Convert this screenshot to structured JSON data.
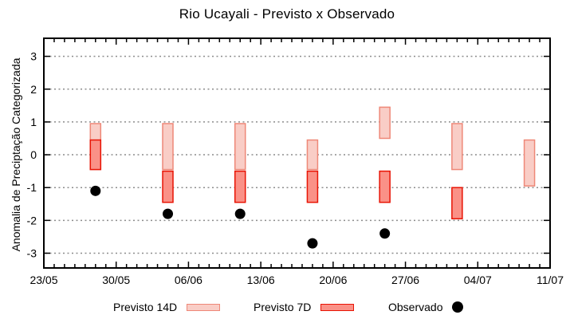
{
  "title": "Rio Ucayali - Previsto x Observado",
  "y_axis": {
    "label": "Anomalia de Preciptação Categorizada",
    "tick_values": [
      3,
      2,
      1,
      0,
      -1,
      -2,
      -3
    ]
  },
  "x_axis": {
    "tick_labels": [
      "23/05",
      "30/05",
      "06/06",
      "13/06",
      "20/06",
      "27/06",
      "04/07",
      "11/07"
    ],
    "span_days": 49,
    "major_tick_interval_days": 7,
    "minor_tick_interval_days": 1
  },
  "legend": {
    "items": [
      {
        "label": "Previsto 14D",
        "swatch": "range-14d"
      },
      {
        "label": "Previsto 7D",
        "swatch": "range-7d"
      },
      {
        "label": "Observado",
        "swatch": "dot"
      }
    ]
  },
  "colors": {
    "previsto_14d_fill": "#f9cdc6",
    "previsto_14d_border": "#ee8878",
    "previsto_7d_fill": "#fa9187",
    "previsto_7d_border": "#e81405",
    "observado": "#000000",
    "grid": "#8c8c8c",
    "axis": "#000000",
    "background": "#ffffff"
  },
  "chart_data": {
    "type": "range-bar+scatter",
    "title": "Rio Ucayali - Previsto x Observado",
    "xlabel": "",
    "ylabel": "Anomalia de Preciptação Categorizada",
    "ylim": [
      -3.45,
      3.55
    ],
    "grid": "horizontal-dotted",
    "legend_position": "below-plot",
    "x": [
      "28/05",
      "04/06",
      "11/06",
      "18/06",
      "25/06",
      "02/07",
      "09/07"
    ],
    "x_day_offsets": [
      5,
      12,
      19,
      26,
      33,
      40,
      47
    ],
    "series": [
      {
        "name": "Previsto 14D",
        "type": "range-bar",
        "ranges": [
          [
            -0.45,
            0.95
          ],
          [
            -0.45,
            0.95
          ],
          [
            -0.45,
            0.95
          ],
          [
            -0.45,
            0.45
          ],
          [
            0.5,
            1.45
          ],
          [
            -0.45,
            0.95
          ],
          [
            -0.95,
            0.45
          ]
        ]
      },
      {
        "name": "Previsto 7D",
        "type": "range-bar",
        "ranges": [
          [
            -0.45,
            0.45
          ],
          [
            -1.45,
            -0.5
          ],
          [
            -1.45,
            -0.5
          ],
          [
            -1.45,
            -0.5
          ],
          [
            -1.45,
            -0.5
          ],
          [
            -1.95,
            -1.0
          ],
          null
        ]
      },
      {
        "name": "Observado",
        "type": "scatter",
        "values": [
          -1.1,
          -1.8,
          -1.8,
          -2.7,
          -2.4,
          null,
          null
        ]
      }
    ]
  }
}
